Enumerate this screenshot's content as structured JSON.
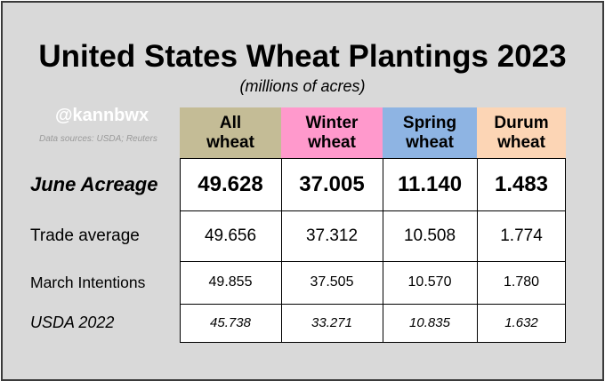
{
  "chart_data": {
    "type": "table",
    "title": "United States Wheat Plantings 2023",
    "subtitle": "(millions of acres)",
    "watermark": "@kannbwx",
    "source": "Data sources: USDA; Reuters",
    "columns": [
      {
        "label": "All\nwheat",
        "color": "#c4bc96"
      },
      {
        "label": "Winter\nwheat",
        "color": "#ff99cc"
      },
      {
        "label": "Spring\nwheat",
        "color": "#8eb4e3"
      },
      {
        "label": "Durum\nwheat",
        "color": "#fcd5b5"
      }
    ],
    "rows": [
      {
        "label": "June Acreage",
        "values": [
          "49.628",
          "37.005",
          "11.140",
          "1.483"
        ],
        "style": "bold-italic"
      },
      {
        "label": "Trade average",
        "values": [
          "49.656",
          "37.312",
          "10.508",
          "1.774"
        ],
        "style": "normal"
      },
      {
        "label": "March Intentions",
        "values": [
          "49.855",
          "37.505",
          "10.570",
          "1.780"
        ],
        "style": "normal"
      },
      {
        "label": "USDA 2022",
        "values": [
          "45.738",
          "33.271",
          "10.835",
          "1.632"
        ],
        "style": "italic"
      }
    ]
  }
}
